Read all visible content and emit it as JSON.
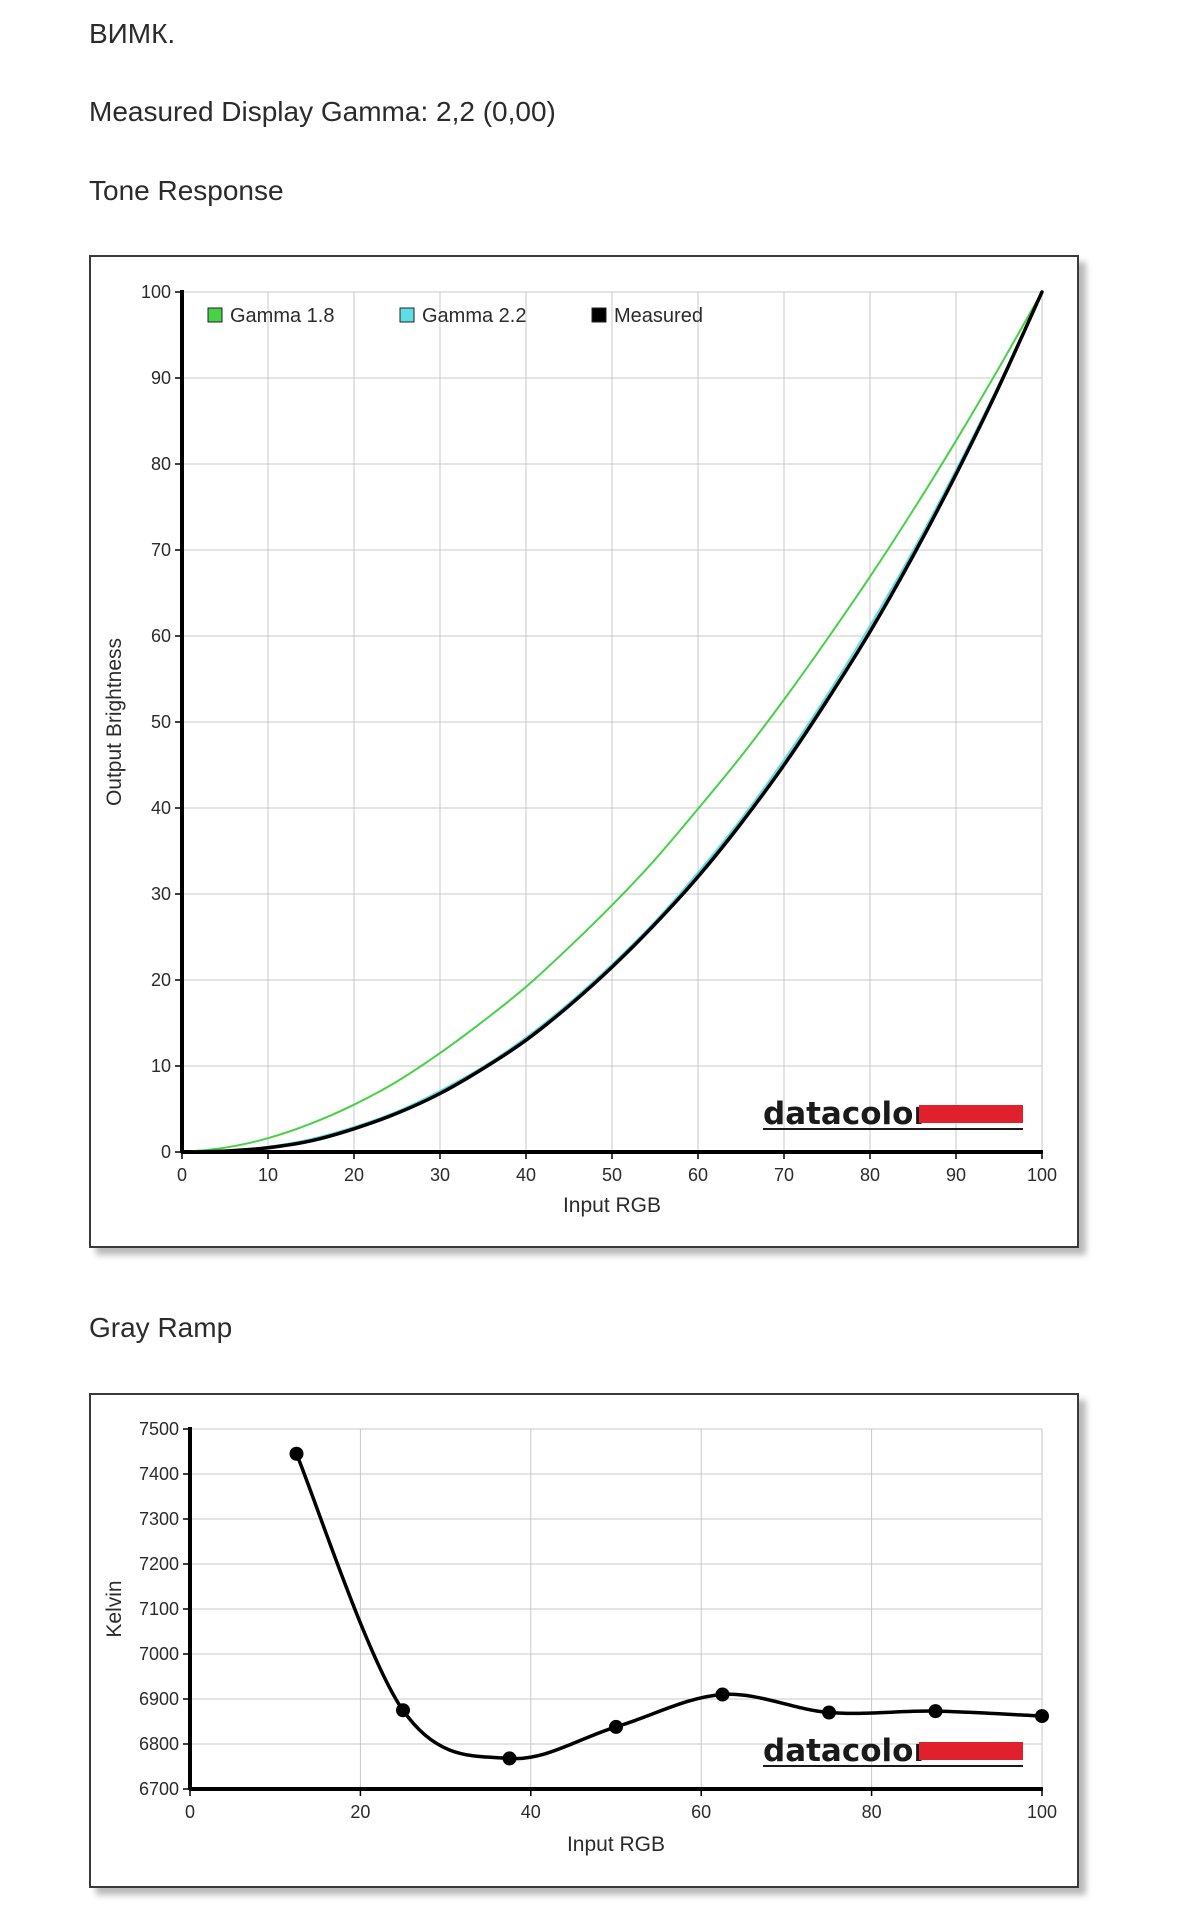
{
  "header": {
    "model": "ВИМК.",
    "gamma_line": "Measured Display Gamma: 2,2 (0,00)",
    "tone_title": "Tone Response",
    "gray_title": "Gray Ramp"
  },
  "colors": {
    "gamma18": "#47d147",
    "gamma22": "#5fdde6",
    "measured": "#000000",
    "brand_red": "#e0212d",
    "grid": "#c8c8c8"
  },
  "chart_data": [
    {
      "type": "line",
      "title": "",
      "xlabel": "Input RGB",
      "ylabel": "Output Brightness",
      "xlim": [
        0,
        100
      ],
      "ylim": [
        0,
        100
      ],
      "xticks": [
        0,
        10,
        20,
        30,
        40,
        50,
        60,
        70,
        80,
        90,
        100
      ],
      "yticks": [
        0,
        10,
        20,
        30,
        40,
        50,
        60,
        70,
        80,
        90,
        100
      ],
      "grid": true,
      "legend_position": "top-left",
      "brand": "datacolor",
      "series": [
        {
          "name": "Gamma 1.8",
          "color": "#47d147",
          "x": [
            0,
            5,
            10,
            15,
            20,
            25,
            30,
            35,
            40,
            45,
            50,
            55,
            60,
            65,
            70,
            75,
            80,
            85,
            90,
            95,
            100
          ],
          "y": [
            0,
            0.5,
            1.6,
            3.3,
            5.5,
            8.2,
            11.5,
            15.2,
            19.2,
            23.8,
            28.7,
            34.0,
            39.9,
            46.0,
            52.6,
            59.6,
            66.9,
            74.6,
            82.7,
            91.2,
            100
          ]
        },
        {
          "name": "Gamma 2.2",
          "color": "#5fdde6",
          "x": [
            0,
            5,
            10,
            15,
            20,
            25,
            30,
            35,
            40,
            45,
            50,
            55,
            60,
            65,
            70,
            75,
            80,
            85,
            90,
            95,
            100
          ],
          "y": [
            0,
            0.1,
            0.6,
            1.5,
            2.9,
            4.7,
            7.1,
            9.9,
            13.3,
            17.3,
            21.8,
            26.8,
            32.5,
            38.7,
            45.6,
            53.1,
            61.2,
            69.9,
            79.3,
            89.3,
            100
          ]
        },
        {
          "name": "Measured",
          "color": "#000000",
          "x": [
            0,
            5,
            10,
            15,
            20,
            25,
            30,
            35,
            40,
            45,
            50,
            55,
            60,
            65,
            70,
            75,
            80,
            85,
            90,
            95,
            100
          ],
          "y": [
            0,
            0.1,
            0.5,
            1.3,
            2.7,
            4.5,
            6.8,
            9.7,
            13.0,
            17.0,
            21.5,
            26.5,
            32.0,
            38.2,
            45.0,
            52.5,
            60.5,
            69.3,
            78.8,
            89.0,
            100
          ]
        }
      ]
    },
    {
      "type": "line",
      "title": "",
      "xlabel": "Input RGB",
      "ylabel": "Kelvin",
      "xlim": [
        0,
        100
      ],
      "ylim": [
        6700,
        7500
      ],
      "xticks": [
        0,
        20,
        40,
        60,
        80,
        100
      ],
      "yticks": [
        6700,
        6800,
        6900,
        7000,
        7100,
        7200,
        7300,
        7400,
        7500
      ],
      "grid": true,
      "brand": "datacolor",
      "series": [
        {
          "color": "#000000",
          "x": [
            12.5,
            25,
            37.5,
            50,
            62.5,
            75,
            87.5,
            100
          ],
          "y": [
            7445,
            6875,
            6768,
            6838,
            6910,
            6870,
            6873,
            6862
          ]
        }
      ]
    }
  ]
}
